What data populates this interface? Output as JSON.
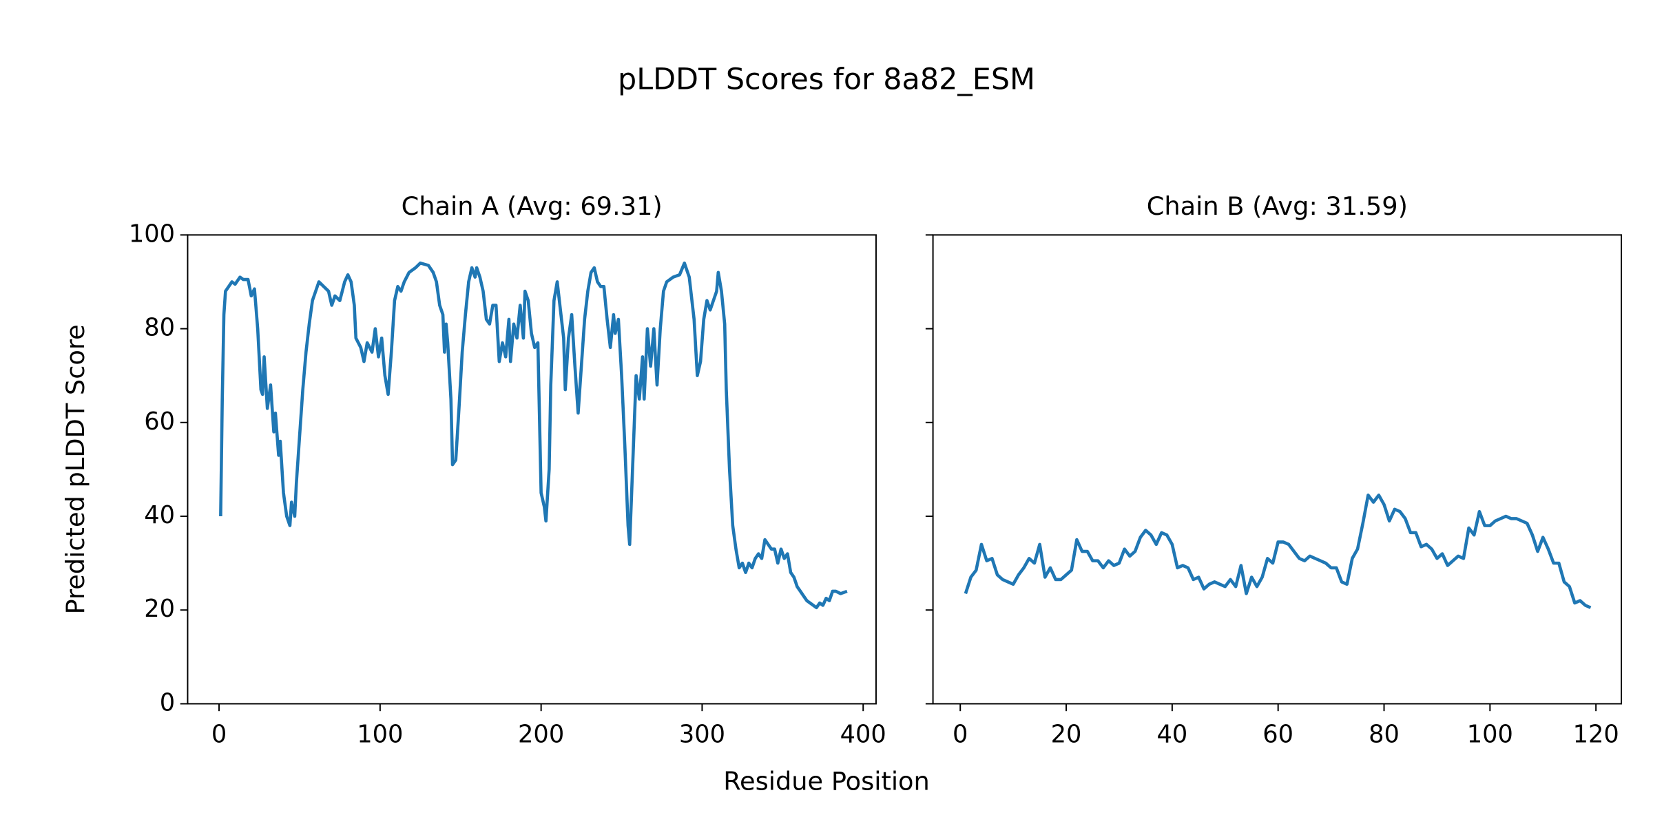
{
  "title": "pLDDT Scores for 8a82_ESM",
  "x_label": "Residue Position",
  "chart_data": [
    {
      "type": "line",
      "title": "Chain A (Avg: 69.31)",
      "y_label": "Predicted pLDDT Score",
      "color": "#1f77b4",
      "xlim": [
        -19.5,
        408
      ],
      "ylim": [
        0,
        100
      ],
      "xticks": [
        0,
        100,
        200,
        300,
        400
      ],
      "yticks": [
        0,
        20,
        40,
        60,
        80,
        100
      ],
      "show_ytick_labels": true,
      "x": [
        1,
        2,
        3,
        4,
        6,
        8,
        10,
        13,
        15,
        18,
        20,
        22,
        24,
        26,
        27,
        28,
        30,
        32,
        34,
        35,
        37,
        38,
        40,
        42,
        44,
        45,
        47,
        48,
        50,
        52,
        54,
        56,
        58,
        60,
        62,
        65,
        68,
        70,
        72,
        75,
        78,
        80,
        82,
        84,
        85,
        88,
        90,
        92,
        95,
        97,
        99,
        101,
        103,
        105,
        107,
        109,
        111,
        113,
        115,
        118,
        122,
        125,
        130,
        133,
        135,
        137,
        139,
        140,
        141,
        142,
        144,
        145,
        147,
        149,
        151,
        153,
        155,
        157,
        159,
        160,
        162,
        164,
        166,
        168,
        170,
        172,
        174,
        176,
        178,
        180,
        181,
        183,
        185,
        187,
        189,
        190,
        192,
        194,
        196,
        198,
        200,
        202,
        203,
        205,
        206,
        208,
        210,
        212,
        214,
        215,
        217,
        219,
        221,
        223,
        225,
        227,
        229,
        231,
        233,
        235,
        237,
        239,
        241,
        243,
        245,
        246,
        248,
        250,
        252,
        254,
        255,
        257,
        259,
        261,
        263,
        264,
        266,
        268,
        270,
        272,
        274,
        276,
        278,
        282,
        286,
        289,
        292,
        295,
        297,
        299,
        301,
        303,
        305,
        307,
        309,
        310,
        312,
        314,
        315,
        317,
        319,
        321,
        323,
        325,
        327,
        329,
        331,
        333,
        335,
        337,
        339,
        341,
        343,
        345,
        347,
        349,
        351,
        353,
        355,
        357,
        359,
        361,
        363,
        365,
        367,
        369,
        371,
        373,
        375,
        377,
        379,
        381,
        383,
        386,
        390
      ],
      "values": [
        40,
        65,
        83,
        88,
        89,
        90,
        89.5,
        91,
        90.5,
        90.5,
        87,
        88.5,
        80,
        67,
        66,
        74,
        63,
        68,
        58,
        62,
        53,
        56,
        45,
        40,
        38,
        43,
        40,
        47,
        57,
        67,
        75,
        81,
        86,
        88,
        90,
        89,
        88,
        85,
        87,
        86,
        90,
        91.5,
        90,
        85,
        78,
        76,
        73,
        77,
        75,
        80,
        74,
        78,
        70,
        66,
        75,
        86,
        89,
        88,
        90,
        92,
        93,
        94,
        93.5,
        92,
        90,
        85,
        83,
        75,
        81,
        77,
        65,
        51,
        52,
        63,
        75,
        83,
        90,
        93,
        91,
        93,
        91,
        88,
        82,
        81,
        85,
        85,
        73,
        77,
        74,
        82,
        73,
        81,
        78,
        85,
        78,
        88,
        86,
        79,
        76,
        77,
        45,
        42,
        39,
        50,
        68,
        86,
        90,
        84,
        78,
        67,
        78,
        83,
        72,
        62,
        72,
        82,
        88,
        92,
        93,
        90,
        89,
        89,
        82,
        76,
        83,
        79,
        82,
        70,
        55,
        38,
        34,
        52,
        70,
        65,
        74,
        65,
        80,
        72,
        80,
        68,
        80,
        88,
        90,
        91,
        91.5,
        94,
        91,
        82,
        70,
        73,
        82,
        86,
        84,
        86,
        88,
        92,
        88,
        81,
        67,
        50,
        38,
        33,
        29,
        30,
        28,
        30,
        29,
        31,
        32,
        31,
        35,
        34,
        33,
        33,
        30,
        33,
        31,
        32,
        28,
        27,
        25,
        24,
        23,
        22,
        21.5,
        21,
        20.5,
        21.5,
        21,
        22.5,
        22,
        24,
        24,
        23.5,
        24
      ]
    },
    {
      "type": "line",
      "title": "Chain B (Avg: 31.59)",
      "color": "#1f77b4",
      "xlim": [
        -5.15,
        124.8
      ],
      "ylim": [
        0,
        100
      ],
      "xticks": [
        0,
        20,
        40,
        60,
        80,
        100,
        120
      ],
      "yticks": [
        0,
        20,
        40,
        60,
        80,
        100
      ],
      "show_ytick_labels": false,
      "x": [
        1,
        2,
        3,
        4,
        5,
        6,
        7,
        8,
        9,
        10,
        11,
        12,
        13,
        14,
        15,
        16,
        17,
        18,
        19,
        20,
        21,
        22,
        23,
        24,
        25,
        26,
        27,
        28,
        29,
        30,
        31,
        32,
        33,
        34,
        35,
        36,
        37,
        38,
        39,
        40,
        41,
        42,
        43,
        44,
        45,
        46,
        47,
        48,
        49,
        50,
        51,
        52,
        53,
        54,
        55,
        56,
        57,
        58,
        59,
        60,
        61,
        62,
        63,
        64,
        65,
        66,
        67,
        68,
        69,
        70,
        71,
        72,
        73,
        74,
        75,
        76,
        77,
        78,
        79,
        80,
        81,
        82,
        83,
        84,
        85,
        86,
        87,
        88,
        89,
        90,
        91,
        92,
        93,
        94,
        95,
        96,
        97,
        98,
        99,
        100,
        101,
        102,
        103,
        104,
        105,
        106,
        107,
        108,
        109,
        110,
        111,
        112,
        113,
        114,
        115,
        116,
        117,
        118,
        119
      ],
      "values": [
        23.5,
        27,
        28.5,
        34,
        30.5,
        31,
        27.5,
        26.5,
        26,
        25.5,
        27.5,
        29,
        31,
        30,
        34,
        27,
        29,
        26.5,
        26.5,
        27.5,
        28.5,
        35,
        32.5,
        32.5,
        30.5,
        30.5,
        29,
        30.5,
        29.5,
        30,
        33,
        31.5,
        32.5,
        35.5,
        37,
        36,
        34,
        36.5,
        36,
        34,
        29,
        29.5,
        29,
        26.5,
        27,
        24.5,
        25.5,
        26,
        25.5,
        25,
        26.5,
        25,
        29.5,
        23.5,
        27,
        25,
        27,
        31,
        30,
        34.5,
        34.5,
        34,
        32.5,
        31,
        30.5,
        31.5,
        31,
        30.5,
        30,
        29,
        29,
        26,
        25.5,
        31,
        33,
        38.5,
        44.5,
        43,
        44.5,
        42.5,
        39,
        41.5,
        41,
        39.5,
        36.5,
        36.5,
        33.5,
        34,
        33,
        31,
        32,
        29.5,
        30.5,
        31.5,
        31,
        37.5,
        36,
        41,
        38,
        38,
        39,
        39.5,
        40,
        39.5,
        39.5,
        39,
        38.5,
        36,
        32.5,
        35.5,
        33,
        30,
        30,
        26,
        25,
        21.5,
        22,
        21,
        20.5
      ]
    }
  ]
}
